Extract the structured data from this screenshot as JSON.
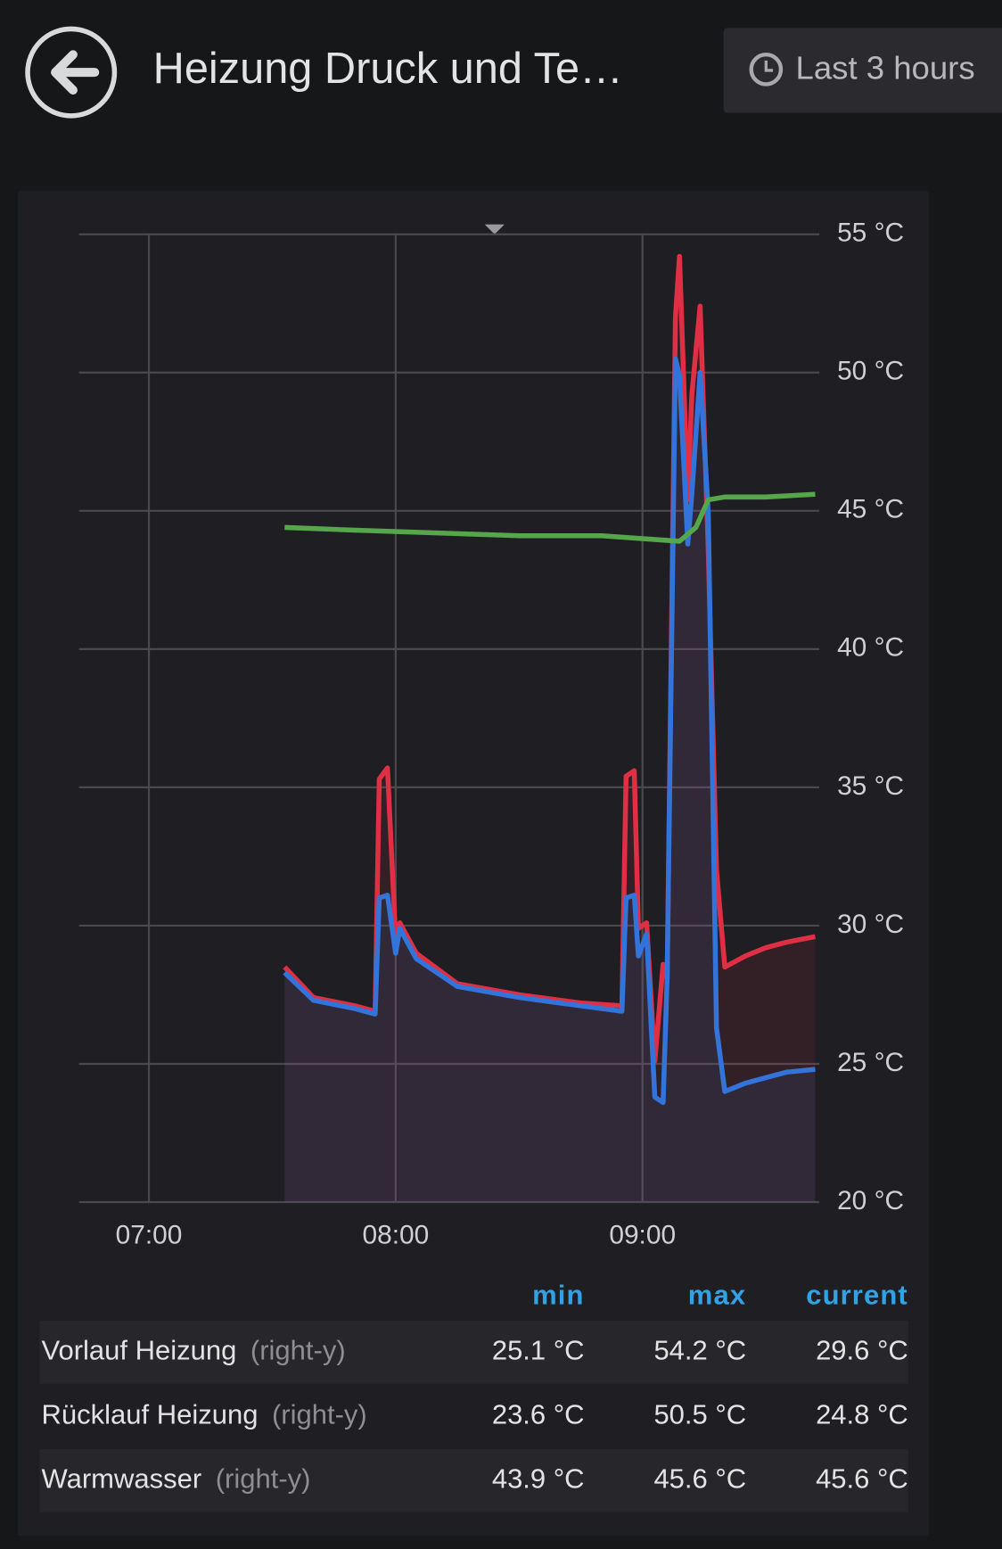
{
  "header": {
    "title": "Heizung Druck und Te…",
    "time_range": "Last 3 hours"
  },
  "chart_data": {
    "type": "line",
    "xlim": [
      "06:43",
      "09:43"
    ],
    "xticks": [
      "07:00",
      "08:00",
      "09:00"
    ],
    "ylim": [
      20,
      55
    ],
    "yticks": [
      {
        "value": 20,
        "label": "20 °C"
      },
      {
        "value": 25,
        "label": "25 °C"
      },
      {
        "value": 30,
        "label": "30 °C"
      },
      {
        "value": 35,
        "label": "35 °C"
      },
      {
        "value": 40,
        "label": "40 °C"
      },
      {
        "value": 45,
        "label": "45 °C"
      },
      {
        "value": 50,
        "label": "50 °C"
      },
      {
        "value": 55,
        "label": "55 °C"
      }
    ],
    "grid": true,
    "series": [
      {
        "name": "Vorlauf Heizung",
        "color": "#e02f44",
        "fill": true,
        "x": [
          "07:33",
          "07:40",
          "07:50",
          "07:55",
          "07:56",
          "07:58",
          "08:00",
          "08:01",
          "08:05",
          "08:15",
          "08:30",
          "08:45",
          "08:55",
          "08:56",
          "08:58",
          "08:59",
          "09:01",
          "09:03",
          "09:05",
          "09:06",
          "09:08",
          "09:09",
          "09:11",
          "09:12",
          "09:14",
          "09:16",
          "09:18",
          "09:20",
          "09:25",
          "09:30",
          "09:35",
          "09:42"
        ],
        "values": [
          28.5,
          27.4,
          27.1,
          26.9,
          35.3,
          35.7,
          29.5,
          30.1,
          29.0,
          27.9,
          27.5,
          27.2,
          27.1,
          35.4,
          35.6,
          29.9,
          30.1,
          25.1,
          28.6,
          28.1,
          52.0,
          54.2,
          45.4,
          49.2,
          52.4,
          43.5,
          32.0,
          28.5,
          28.9,
          29.2,
          29.4,
          29.6
        ]
      },
      {
        "name": "Rücklauf Heizung",
        "color": "#3274d9",
        "fill": true,
        "x": [
          "07:33",
          "07:40",
          "07:50",
          "07:55",
          "07:56",
          "07:58",
          "08:00",
          "08:01",
          "08:05",
          "08:15",
          "08:30",
          "08:45",
          "08:55",
          "08:56",
          "08:58",
          "08:59",
          "09:01",
          "09:03",
          "09:05",
          "09:06",
          "09:08",
          "09:09",
          "09:11",
          "09:12",
          "09:14",
          "09:16",
          "09:18",
          "09:20",
          "09:25",
          "09:30",
          "09:35",
          "09:42"
        ],
        "values": [
          28.3,
          27.3,
          27.0,
          26.8,
          31.0,
          31.1,
          29.0,
          29.9,
          28.8,
          27.8,
          27.4,
          27.1,
          26.9,
          31.0,
          31.1,
          28.9,
          29.7,
          23.8,
          23.6,
          28.1,
          50.5,
          49.9,
          43.8,
          45.6,
          50.0,
          44.9,
          26.3,
          24.0,
          24.3,
          24.5,
          24.7,
          24.8
        ]
      },
      {
        "name": "Warmwasser",
        "color": "#56a64b",
        "fill": false,
        "x": [
          "07:33",
          "07:50",
          "08:10",
          "08:30",
          "08:50",
          "09:09",
          "09:13",
          "09:16",
          "09:20",
          "09:30",
          "09:42"
        ],
        "values": [
          44.4,
          44.3,
          44.2,
          44.1,
          44.1,
          43.9,
          44.4,
          45.4,
          45.5,
          45.5,
          45.6
        ]
      }
    ]
  },
  "legend": {
    "columns": [
      "min",
      "max",
      "current"
    ],
    "rows": [
      {
        "name": "Vorlauf Heizung",
        "axis": "(right-y)",
        "values": [
          "25.1 °C",
          "54.2 °C",
          "29.6 °C"
        ]
      },
      {
        "name": "Rücklauf Heizung",
        "axis": "(right-y)",
        "values": [
          "23.6 °C",
          "50.5 °C",
          "24.8 °C"
        ]
      },
      {
        "name": "Warmwasser",
        "axis": "(right-y)",
        "values": [
          "43.9 °C",
          "45.6 °C",
          "45.6 °C"
        ]
      }
    ]
  }
}
